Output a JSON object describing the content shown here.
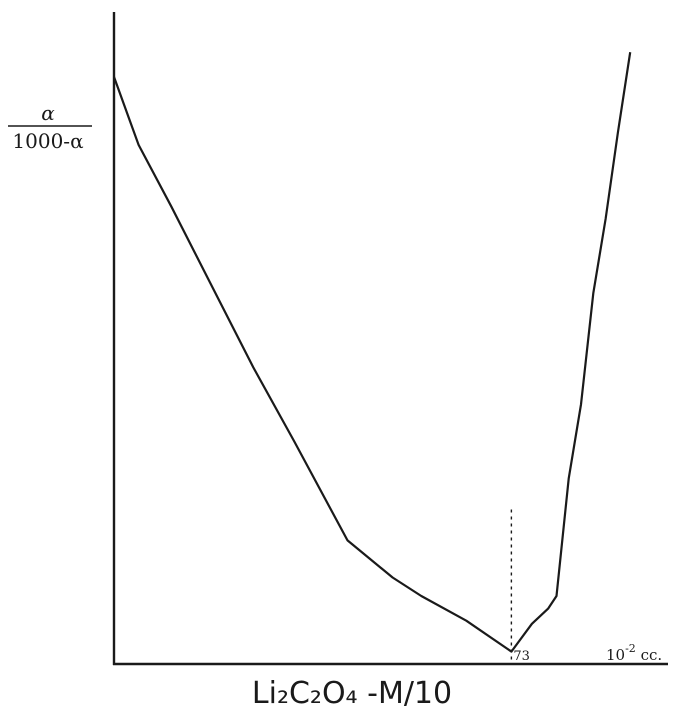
{
  "chart_data": {
    "type": "line",
    "title": "",
    "ylabel": {
      "numerator": "α",
      "denominator": "1000-α"
    },
    "xlabel": {
      "unit_base": "10",
      "unit_exponent": "-2",
      "unit_suffix": " cc."
    },
    "caption": {
      "text": "Li₂C₂O₄ -M/10"
    },
    "xlim": [
      0,
      124
    ],
    "ylim": [
      0,
      100
    ],
    "grid": false,
    "legend": "none",
    "series": [
      {
        "x": [
          0,
          6,
          14,
          24,
          34,
          44,
          57,
          68,
          75,
          86,
          97,
          102,
          106,
          108,
          111,
          114,
          117,
          120,
          123,
          126
        ],
        "y": [
          95,
          84,
          74,
          61,
          48,
          36,
          20,
          14,
          11,
          7,
          2,
          6.5,
          9,
          11,
          30,
          42,
          60,
          72,
          86,
          99
        ]
      }
    ],
    "marker": {
      "x": 97,
      "label": "73"
    },
    "colors": {
      "ink": "#1a1a1a",
      "background": "#ffffff"
    }
  }
}
